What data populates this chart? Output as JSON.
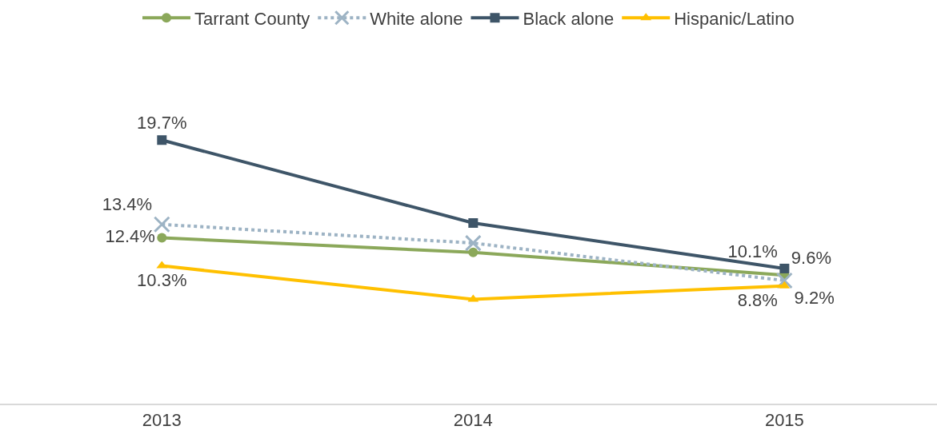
{
  "chart_data": {
    "type": "line",
    "categories": [
      "2013",
      "2014",
      "2015"
    ],
    "tick_labels": "x",
    "grid": false,
    "legend": "top",
    "series": [
      {
        "name": "Tarrant County",
        "color": "#8ba85a",
        "marker": "circle",
        "line_style": "solid",
        "values": [
          12.4,
          11.3,
          9.6
        ],
        "value_labels": [
          "12.4%",
          null,
          "9.6%"
        ]
      },
      {
        "name": "White alone",
        "color": "#9db3c4",
        "marker": "cross",
        "line_style": "dotted",
        "values": [
          13.4,
          12.0,
          9.2
        ],
        "value_labels": [
          "13.4%",
          null,
          "9.2%"
        ]
      },
      {
        "name": "Black alone",
        "color": "#3e5568",
        "marker": "square",
        "line_style": "solid",
        "values": [
          19.7,
          13.5,
          10.1
        ],
        "value_labels": [
          "19.7%",
          null,
          "10.1%"
        ]
      },
      {
        "name": "Hispanic/Latino",
        "color": "#ffc000",
        "marker": "triangle",
        "line_style": "solid",
        "values": [
          10.3,
          7.8,
          8.8
        ],
        "value_labels": [
          "10.3%",
          null,
          "8.8%"
        ]
      }
    ]
  }
}
